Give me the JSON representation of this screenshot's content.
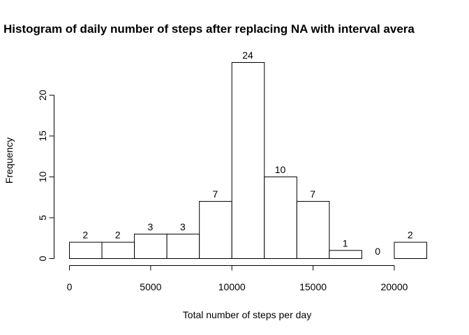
{
  "chart_data": {
    "type": "bar",
    "title": "Histogram of daily number of steps after replacing NA with interval avera",
    "xlabel": "Total number of steps per day",
    "ylabel": "Frequency",
    "bins": [
      {
        "from": 0,
        "to": 2000,
        "count": 2
      },
      {
        "from": 2000,
        "to": 4000,
        "count": 2
      },
      {
        "from": 4000,
        "to": 6000,
        "count": 3
      },
      {
        "from": 6000,
        "to": 8000,
        "count": 3
      },
      {
        "from": 8000,
        "to": 10000,
        "count": 7
      },
      {
        "from": 10000,
        "to": 12000,
        "count": 24
      },
      {
        "from": 12000,
        "to": 14000,
        "count": 10
      },
      {
        "from": 14000,
        "to": 16000,
        "count": 7
      },
      {
        "from": 16000,
        "to": 18000,
        "count": 1
      },
      {
        "from": 18000,
        "to": 20000,
        "count": 0
      },
      {
        "from": 20000,
        "to": 22000,
        "count": 2
      }
    ],
    "xticks": [
      0,
      5000,
      10000,
      15000,
      20000
    ],
    "yticks": [
      0,
      5,
      10,
      15,
      20
    ],
    "xlim": [
      0,
      22000
    ],
    "ylim": [
      0,
      24
    ],
    "data_labels": true,
    "grid": false
  }
}
